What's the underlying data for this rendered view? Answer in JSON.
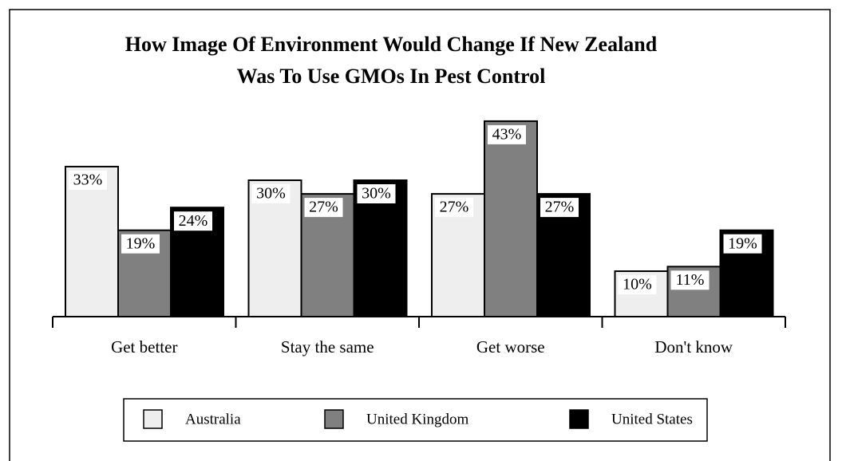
{
  "chart_data": {
    "type": "bar",
    "title": "How Image Of Environment Would Change If New Zealand Was To Use GMOs In Pest Control",
    "categories": [
      "Get better",
      "Stay the same",
      "Get worse",
      "Don't know"
    ],
    "series": [
      {
        "name": "Australia",
        "color": "#eeeeee",
        "values": [
          33,
          30,
          27,
          10
        ],
        "value_labels": [
          "33%",
          "30%",
          "27%",
          "10%"
        ]
      },
      {
        "name": "United Kingdom",
        "color": "#808080",
        "values": [
          19,
          27,
          43,
          11
        ],
        "value_labels": [
          "19%",
          "27%",
          "43%",
          "11%"
        ]
      },
      {
        "name": "United States",
        "color": "#000000",
        "values": [
          24,
          30,
          27,
          19
        ],
        "value_labels": [
          "24%",
          "30%",
          "27%",
          "19%"
        ]
      }
    ],
    "legend": "bottom"
  }
}
